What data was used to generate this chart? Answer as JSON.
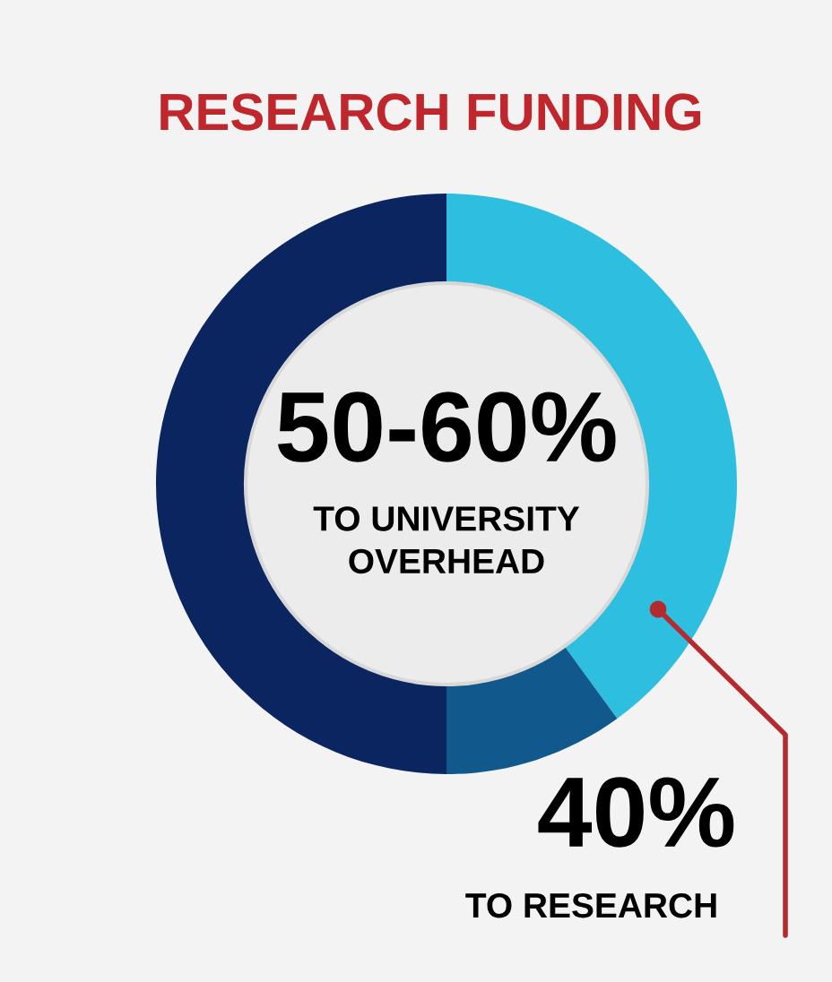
{
  "chart_data": {
    "type": "donut",
    "title": "RESEARCH FUNDING",
    "categories": [
      null,
      null,
      null
    ],
    "values": [
      40,
      10,
      50
    ],
    "colors": [
      "#2ebfe0",
      "#11598c",
      "#0a2560"
    ],
    "annotations": [
      "50-60%",
      "TO UNIVERSITY\nOVERHEAD",
      "40%",
      "TO RESEARCH"
    ]
  }
}
